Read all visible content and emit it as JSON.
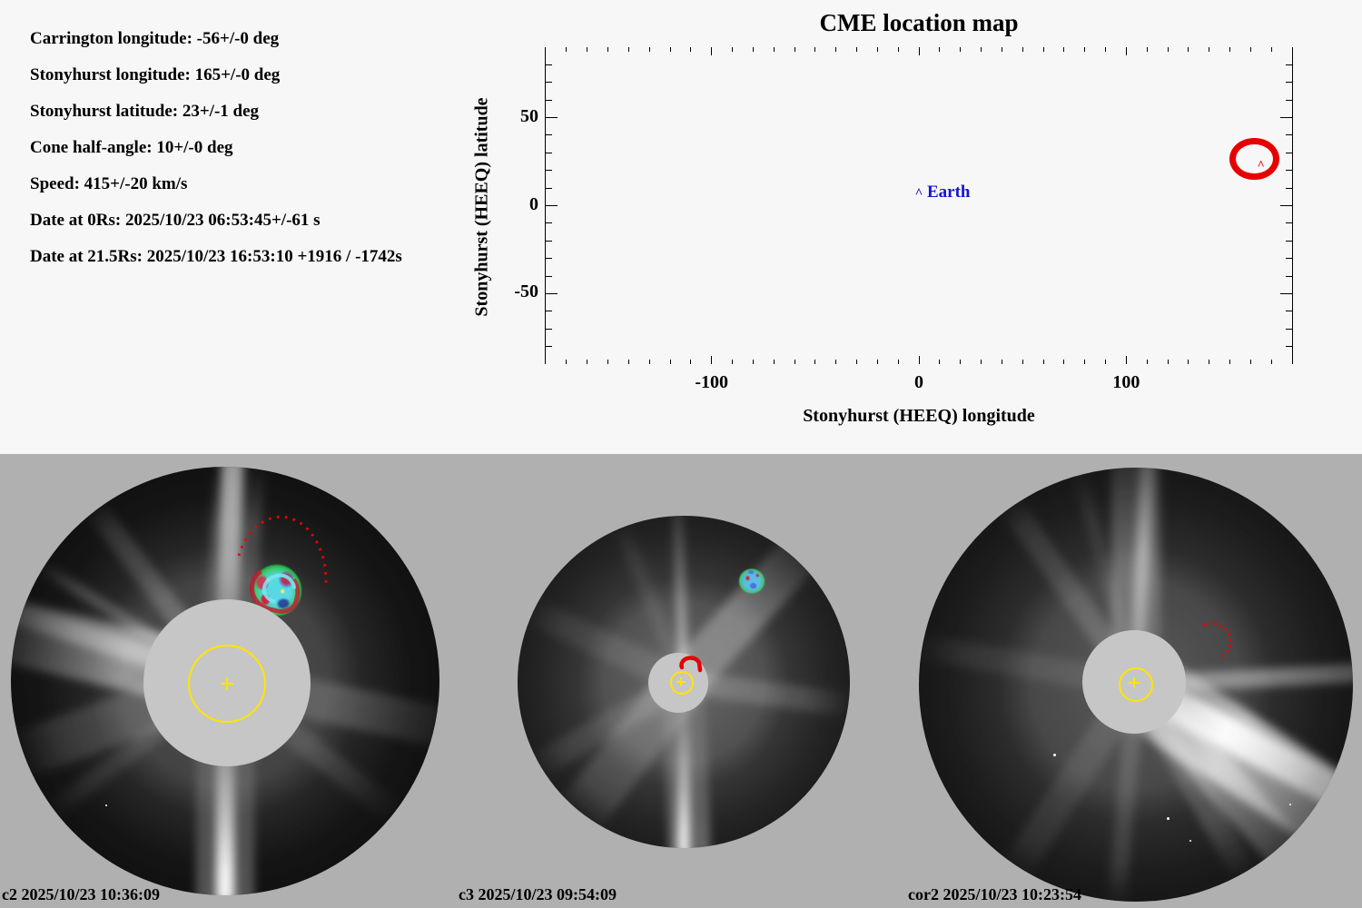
{
  "info_panel": {
    "lines": [
      "Carrington longitude: -56+/-0 deg",
      "Stonyhurst longitude: 165+/-0 deg",
      "Stonyhurst latitude: 23+/-1 deg",
      "Cone half-angle: 10+/-0 deg",
      "Speed: 415+/-20 km/s",
      "Date at 0Rs: 2025/10/23 06:53:45+/-61 s",
      "Date at 21.5Rs: 2025/10/23 16:53:10 +1916 / -1742s"
    ]
  },
  "chart_data": {
    "type": "scatter",
    "title": "CME location map",
    "xlabel": "Stonyhurst (HEEQ) longitude",
    "ylabel": "Stonyhurst (HEEQ) latitude",
    "xlim": [
      -180,
      180
    ],
    "ylim": [
      -90,
      90
    ],
    "x_major_ticks": [
      -100,
      0,
      100
    ],
    "y_major_ticks": [
      50,
      0,
      -50
    ],
    "x_minor_step": 10,
    "y_minor_step": 10,
    "grid": false,
    "legend": null,
    "points": [
      {
        "name": "earth",
        "lon": 0,
        "lat": 7,
        "marker": "caret",
        "color": "#1515cf",
        "label": "Earth"
      },
      {
        "name": "cme-source",
        "lon": 165,
        "lat": 23,
        "marker": "caret",
        "color": "#e60000",
        "ellipse": {
          "rx_deg": 12,
          "ry_deg": 12
        }
      }
    ]
  },
  "images": [
    {
      "id": "c2",
      "label": "c2 2025/10/23 10:36:09"
    },
    {
      "id": "c3",
      "label": "c3 2025/10/23 09:54:09"
    },
    {
      "id": "cor2",
      "label": "cor2 2025/10/23 10:23:54"
    }
  ],
  "colors": {
    "accent_red": "#e60000",
    "earth_blue": "#1515cf",
    "sun_yellow": "#ffe400",
    "panel_gray": "#b0b0b0",
    "occulter_gray": "#c6c6c6",
    "plot_bg": "#f7f7f7"
  }
}
